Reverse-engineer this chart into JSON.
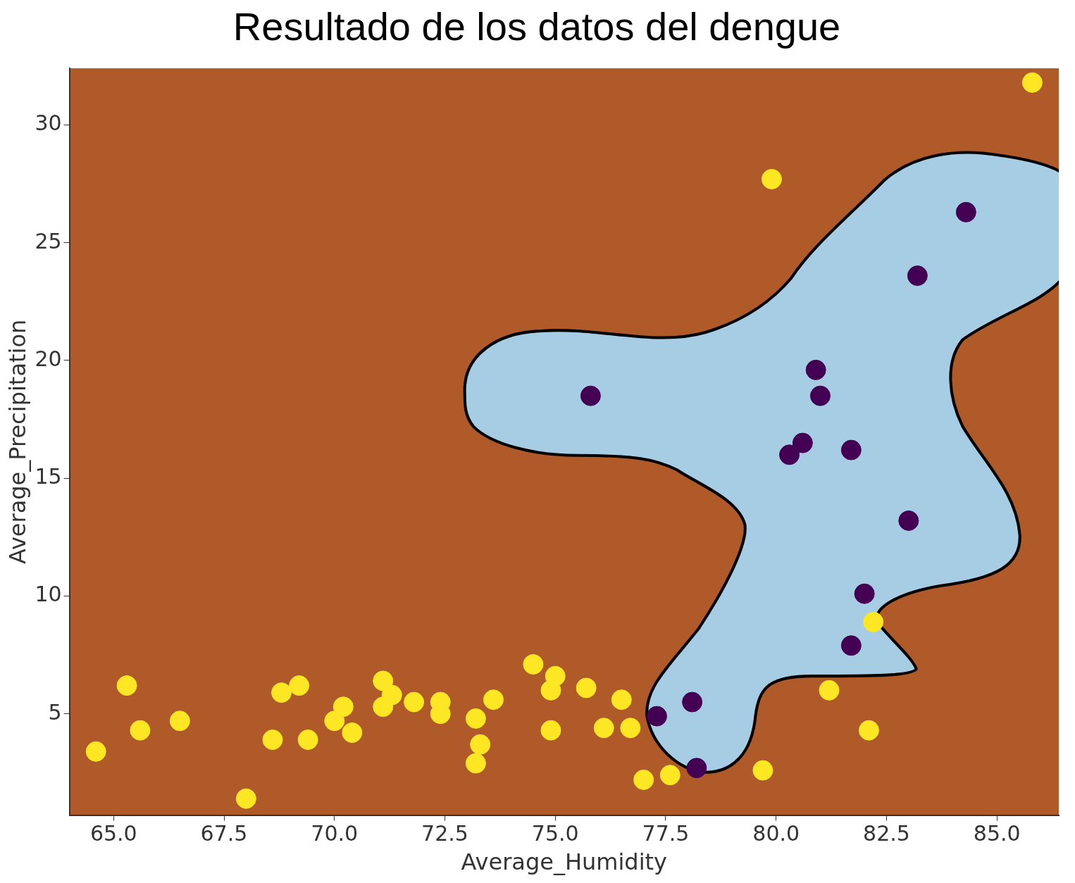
{
  "chart_data": {
    "type": "scatter",
    "title": "Resultado de los datos del dengue",
    "xlabel": "Average_Humidity",
    "ylabel": "Average_Precipitation",
    "xlim": [
      64.0,
      86.4
    ],
    "ylim": [
      0.7,
      32.4
    ],
    "xticks": [
      {
        "value": 65,
        "label": "65.0"
      },
      {
        "value": 67.5,
        "label": "67.5"
      },
      {
        "value": 70,
        "label": "70.0"
      },
      {
        "value": 72.5,
        "label": "72.5"
      },
      {
        "value": 75,
        "label": "75.0"
      },
      {
        "value": 77.5,
        "label": "77.5"
      },
      {
        "value": 80,
        "label": "80.0"
      },
      {
        "value": 82.5,
        "label": "82.5"
      },
      {
        "value": 85,
        "label": "85.0"
      }
    ],
    "yticks": [
      5,
      10,
      15,
      20,
      25,
      30
    ],
    "grid": false,
    "legend": false,
    "marker": "circle",
    "series": [
      {
        "color": "#fde725",
        "x": [
          64.6,
          65.3,
          65.6,
          66.5,
          68.0,
          68.6,
          68.8,
          69.2,
          69.4,
          70.0,
          70.2,
          70.4,
          71.1,
          71.1,
          71.3,
          71.8,
          72.4,
          72.4,
          73.2,
          73.3,
          73.2,
          73.6,
          74.5,
          75.0,
          74.9,
          74.9,
          75.7,
          76.1,
          76.5,
          76.7,
          77.0,
          77.6,
          79.7,
          79.9,
          81.2,
          82.1,
          82.2,
          85.8
        ],
        "values": [
          3.4,
          6.2,
          4.3,
          4.7,
          1.4,
          3.9,
          5.9,
          6.2,
          3.9,
          4.7,
          5.3,
          4.2,
          6.4,
          5.3,
          5.8,
          5.5,
          5.5,
          5.0,
          4.8,
          3.7,
          2.9,
          5.6,
          7.1,
          6.6,
          6.0,
          4.3,
          6.1,
          4.4,
          5.6,
          4.4,
          2.2,
          2.4,
          2.6,
          27.7,
          6.0,
          4.3,
          8.9,
          31.8
        ]
      },
      {
        "color": "#440154",
        "x": [
          75.8,
          77.3,
          78.1,
          78.2,
          80.3,
          80.6,
          80.9,
          81.0,
          81.7,
          81.7,
          82.0,
          83.0,
          83.2,
          84.3
        ],
        "values": [
          18.5,
          4.9,
          5.5,
          2.7,
          16.0,
          16.5,
          19.6,
          18.5,
          16.2,
          7.9,
          10.1,
          13.2,
          23.6,
          26.3
        ]
      }
    ]
  }
}
